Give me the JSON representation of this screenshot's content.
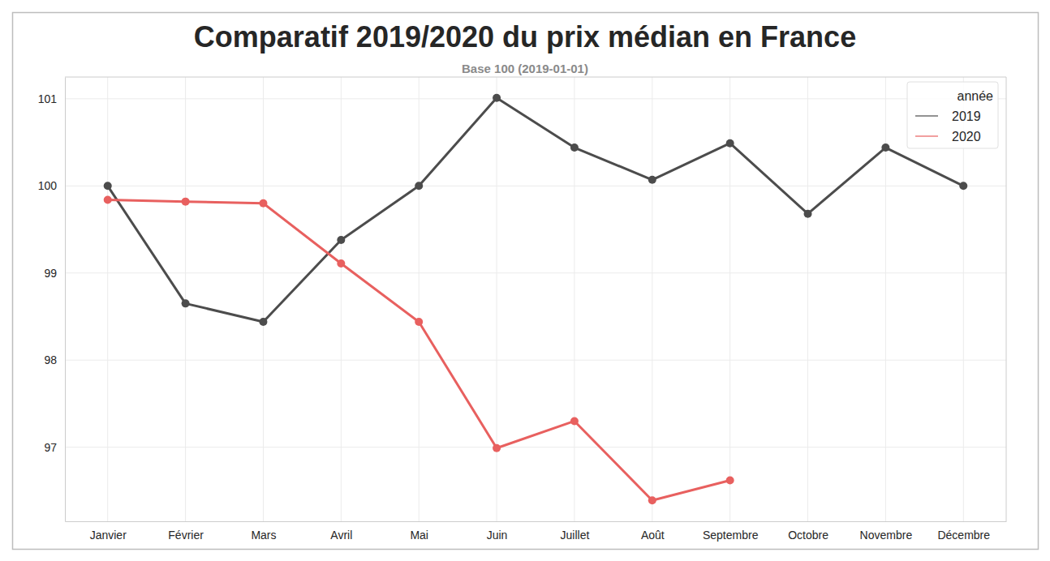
{
  "chart_data": {
    "type": "line",
    "title": "Comparatif 2019/2020 du prix médian en France",
    "subtitle": "Base 100 (2019-01-01)",
    "categories": [
      "Janvier",
      "Février",
      "Mars",
      "Avril",
      "Mai",
      "Juin",
      "Juillet",
      "Août",
      "Septembre",
      "Octobre",
      "Novembre",
      "Décembre"
    ],
    "series": [
      {
        "name": "2019",
        "color": "#4c4c4c",
        "marker": "circle",
        "values": [
          100,
          98.65,
          98.44,
          99.38,
          100,
          101.01,
          100.44,
          100.07,
          100.49,
          99.68,
          100.44,
          100
        ]
      },
      {
        "name": "2020",
        "color": "#e8605f",
        "marker": "circle",
        "values": [
          99.84,
          99.82,
          99.8,
          99.11,
          98.44,
          96.99,
          97.3,
          96.39,
          96.62,
          null,
          null,
          null
        ]
      }
    ],
    "ylim": [
      96.15,
      101.25
    ],
    "yticks": [
      97,
      98,
      99,
      100,
      101
    ],
    "grid": true,
    "legend": "upper right",
    "legend_title": "année"
  }
}
